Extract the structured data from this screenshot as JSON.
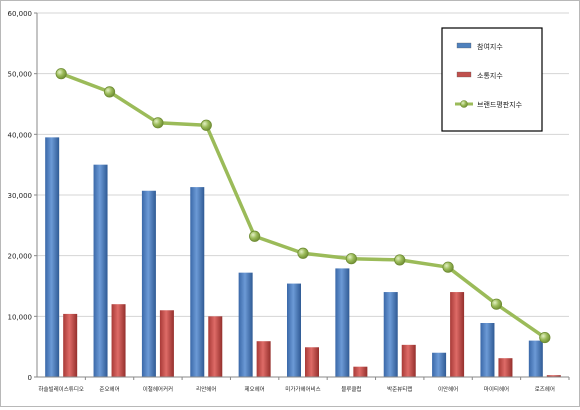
{
  "chart_data": {
    "type": "bar",
    "title": "",
    "xlabel": "",
    "ylabel": "",
    "ylim": [
      0,
      60000
    ],
    "yticks": [
      "0",
      "10,000",
      "20,000",
      "30,000",
      "40,000",
      "50,000",
      "60,000"
    ],
    "ytick_values": [
      0,
      10000,
      20000,
      30000,
      40000,
      50000,
      60000
    ],
    "grid": true,
    "legend_position": "top-right",
    "categories": [
      "하슬빌레이스튜디오",
      "준오헤어",
      "이철헤어커커",
      "리안헤어",
      "제오헤어",
      "미가가헤어비스",
      "블루클럽",
      "박준뷰티랩",
      "이안헤어",
      "마이티헤어",
      "로즈헤어"
    ],
    "series": [
      {
        "name": "참여지수",
        "kind": "bar",
        "color": "#4f81bd",
        "values": [
          39500,
          35000,
          30700,
          31300,
          17200,
          15400,
          17900,
          14000,
          4000,
          8900,
          6000
        ]
      },
      {
        "name": "소통지수",
        "kind": "bar",
        "color": "#c0504d",
        "values": [
          10400,
          12000,
          11000,
          10000,
          5900,
          4900,
          1700,
          5300,
          14000,
          3100,
          300
        ]
      },
      {
        "name": "브랜드평판지수",
        "kind": "line",
        "color": "#9bbb59",
        "values": [
          50000,
          47000,
          41900,
          41500,
          23200,
          20400,
          19500,
          19300,
          18100,
          12000,
          6500
        ]
      }
    ]
  }
}
